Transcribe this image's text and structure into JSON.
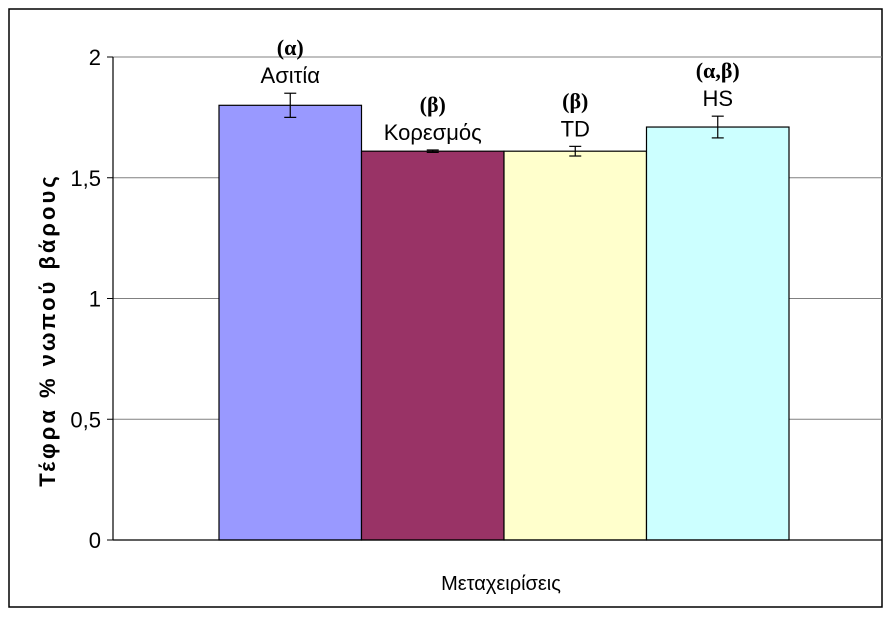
{
  "chart_data": {
    "type": "bar",
    "title": "",
    "xlabel": "Μεταχειρίσεις",
    "ylabel": "Τέφρα % νωπού βάρους",
    "ylim": [
      0,
      2
    ],
    "yticks": [
      "0",
      "0,5",
      "1",
      "1,5",
      "2"
    ],
    "ytick_values": [
      0,
      0.5,
      1,
      1.5,
      2
    ],
    "grid": true,
    "categories": [
      "Ασιτία",
      "Κορεσμός",
      "TD",
      "HS"
    ],
    "values": [
      1.8,
      1.61,
      1.61,
      1.71
    ],
    "errors": [
      0.05,
      0.005,
      0.02,
      0.045
    ],
    "significance": [
      "(α)",
      "(β)",
      "(β)",
      "(α,β)"
    ],
    "colors": [
      "#9999ff",
      "#993366",
      "#ffffcc",
      "#ccffff"
    ]
  }
}
